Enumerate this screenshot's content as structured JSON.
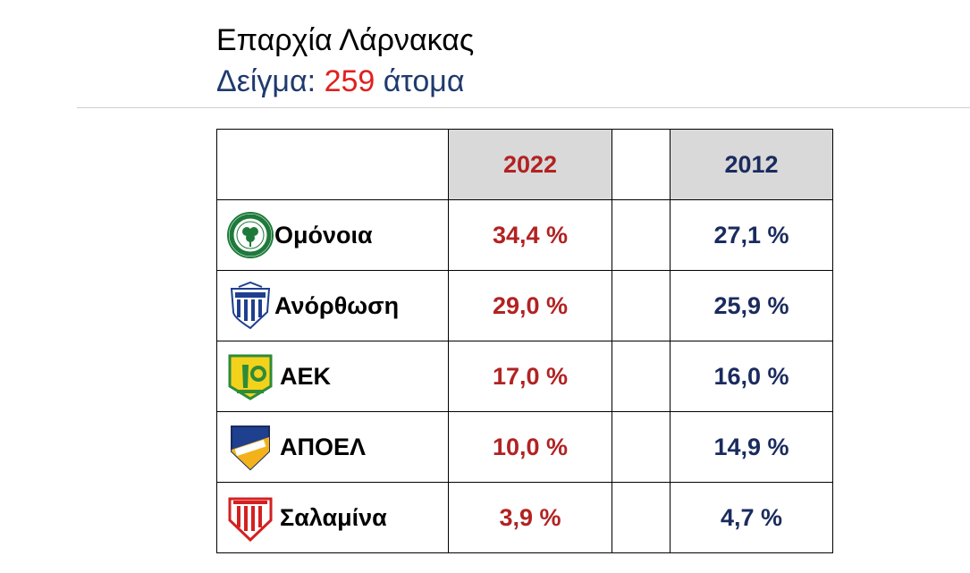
{
  "header": {
    "title": "Επαρχία Λάρνακας",
    "sample_label": "Δείγμα:",
    "sample_size": "259",
    "sample_unit": "άτομα"
  },
  "table": {
    "columns": {
      "year_a": "2022",
      "year_b": "2012"
    },
    "rows": [
      {
        "team": "Ομόνοια",
        "logo": "omonoia-logo",
        "v2022": "34,4 %",
        "v2012": "27,1 %"
      },
      {
        "team": "Ανόρθωση",
        "logo": "anorthosis-logo",
        "v2022": "29,0 %",
        "v2012": "25,9 %"
      },
      {
        "team": "ΑΕΚ",
        "logo": "aek-logo",
        "v2022": "17,0 %",
        "v2012": "16,0 %"
      },
      {
        "team": "ΑΠΟΕΛ",
        "logo": "apoel-logo",
        "v2022": "10,0 %",
        "v2012": "14,9 %"
      },
      {
        "team": "Σαλαμίνα",
        "logo": "salamina-logo",
        "v2022": "3,9 %",
        "v2012": "4,7 %"
      }
    ]
  },
  "colors": {
    "year_2022": "#b22222",
    "year_2012": "#1a2b5e",
    "sample_number": "#e02020",
    "header_fill": "#d9d9d9"
  }
}
